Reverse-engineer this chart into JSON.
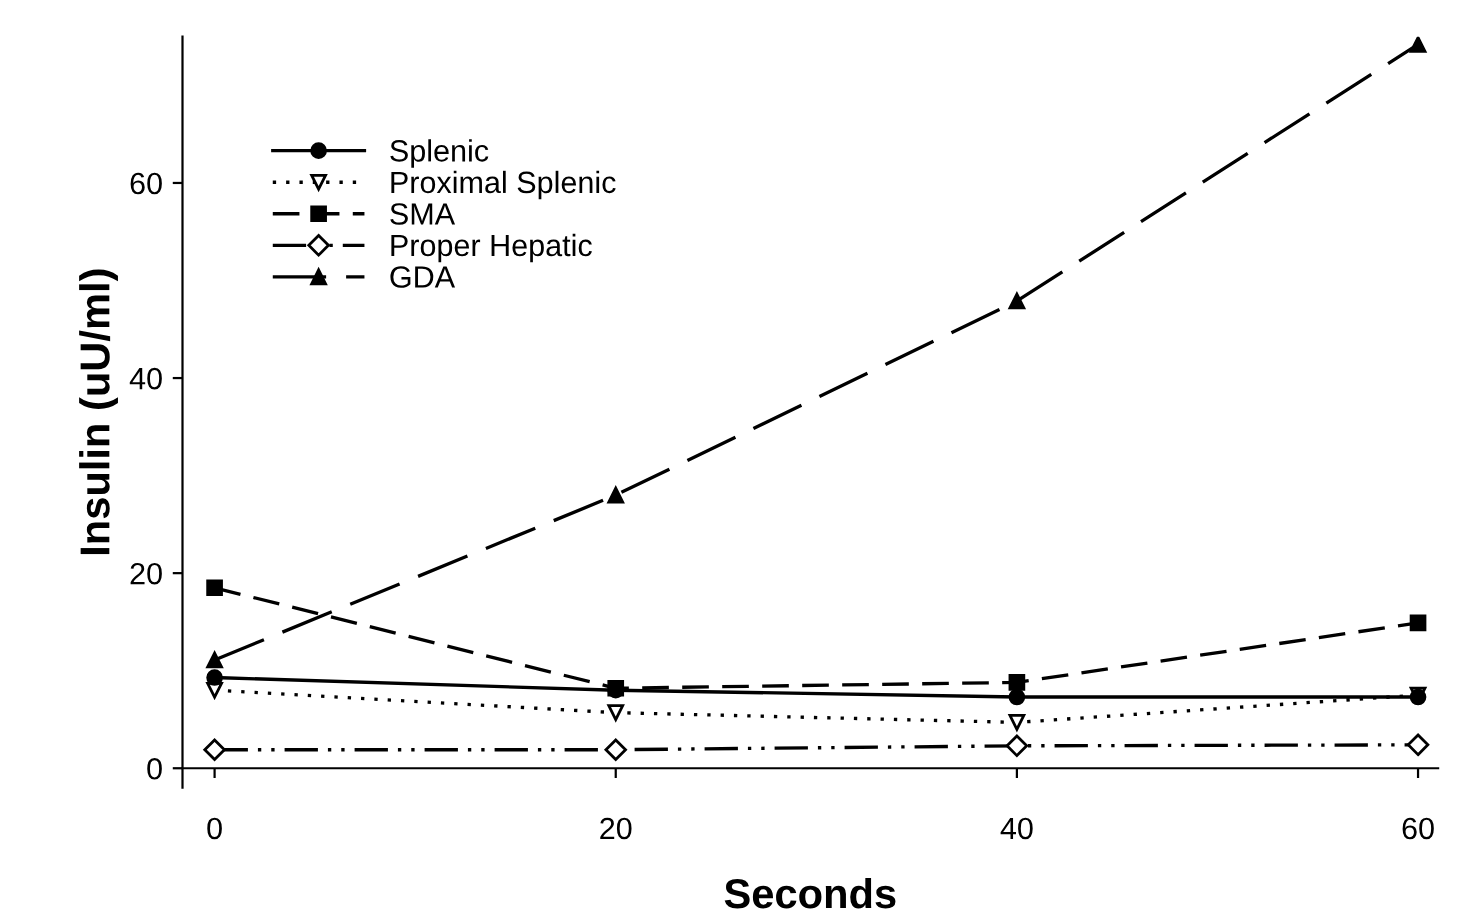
{
  "chart_data": {
    "type": "line",
    "xlabel": "Seconds",
    "ylabel": "Insulin (uU/ml)",
    "x": [
      0,
      20,
      40,
      60
    ],
    "xlim": [
      -1.6,
      61
    ],
    "ylim": [
      -2,
      75
    ],
    "xticks": [
      0,
      20,
      40,
      60
    ],
    "yticks": [
      0,
      20,
      40,
      60
    ],
    "grid": false,
    "legend": "top left",
    "series": [
      {
        "name": "Splenic",
        "color": "#000000",
        "marker": "circle",
        "line_style": "solid",
        "values": [
          9.3,
          8.0,
          7.3,
          7.3
        ]
      },
      {
        "name": "Proximal Splenic",
        "color": "#000000",
        "marker": "triangle-down-open",
        "line_style": "dotted",
        "values": [
          8.0,
          5.7,
          4.7,
          7.5
        ]
      },
      {
        "name": "SMA",
        "color": "#000000",
        "marker": "square",
        "line_style": "dashed",
        "values": [
          18.5,
          8.2,
          8.8,
          14.9
        ]
      },
      {
        "name": "Proper Hepatic",
        "color": "#000000",
        "marker": "diamond-open",
        "line_style": "dashdotdot",
        "values": [
          1.9,
          1.9,
          2.3,
          2.4
        ]
      },
      {
        "name": "GDA",
        "color": "#000000",
        "marker": "triangle",
        "line_style": "longdash",
        "values": [
          11.1,
          28.0,
          47.9,
          74.2
        ]
      }
    ]
  }
}
